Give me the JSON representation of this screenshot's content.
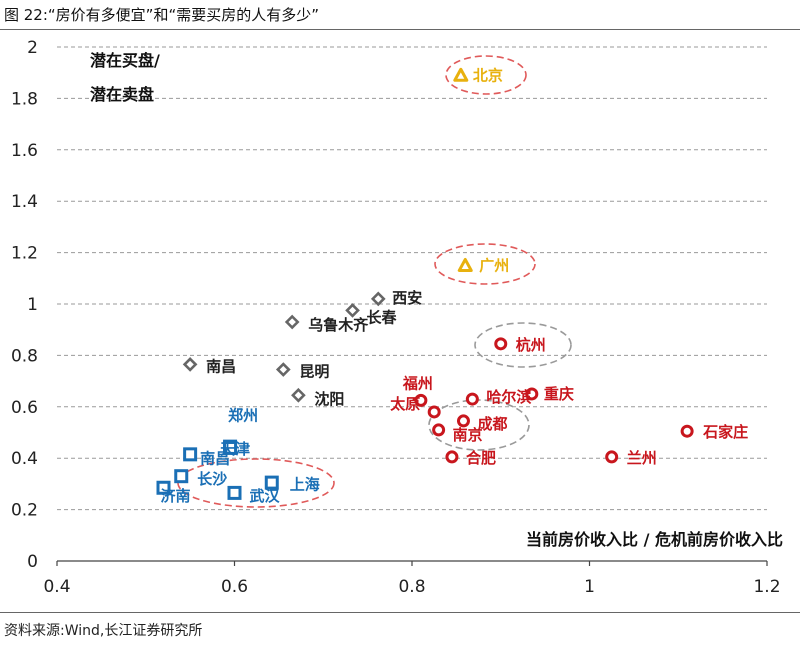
{
  "figure_title": "图 22:“房价有多便宜”和“需要买房的人有多少”",
  "source": "资料来源:Wind,长江证券研究所",
  "colors": {
    "gray": "#666666",
    "red": "#c8161d",
    "blue": "#1a6fb5",
    "gold": "#e8b10e",
    "text_gray": "#222222",
    "ellipse_red": "#e05a5a",
    "ellipse_gray": "#9a9a9a"
  },
  "chart_data": {
    "type": "scatter",
    "xlabel": "当前房价收入比 / 危机前房价收入比",
    "ylabel_lines": [
      "潜在买盘/",
      "潜在卖盘"
    ],
    "xlim": [
      0.4,
      1.2
    ],
    "ylim": [
      0,
      2
    ],
    "x_ticks": [
      "0.4",
      "0.6",
      "0.8",
      "1",
      "1.2"
    ],
    "y_ticks": [
      "0",
      "0.2",
      "0.4",
      "0.6",
      "0.8",
      "1",
      "1.2",
      "1.4",
      "1.6",
      "1.8",
      "2"
    ],
    "grid": "horizontal dashed",
    "series": [
      {
        "marker": "triangle",
        "color": "gold",
        "points": [
          {
            "label": "北京",
            "x": 0.855,
            "y": 1.89
          },
          {
            "label": "广州",
            "x": 0.86,
            "y": 1.15
          }
        ]
      },
      {
        "marker": "diamond",
        "color": "gray",
        "points": [
          {
            "label": "西安",
            "x": 0.762,
            "y": 1.02
          },
          {
            "label": "长春",
            "x": 0.733,
            "y": 0.975
          },
          {
            "label": "乌鲁木齐",
            "x": 0.665,
            "y": 0.93
          },
          {
            "label": "南昌",
            "x": 0.55,
            "y": 0.765
          },
          {
            "label": "昆明",
            "x": 0.655,
            "y": 0.745
          },
          {
            "label": "沈阳",
            "x": 0.672,
            "y": 0.645
          }
        ]
      },
      {
        "marker": "circle",
        "color": "red",
        "points": [
          {
            "label": "杭州",
            "x": 0.9,
            "y": 0.845
          },
          {
            "label": "福州",
            "x": 0.81,
            "y": 0.625
          },
          {
            "label": "哈尔滨",
            "x": 0.868,
            "y": 0.63
          },
          {
            "label": "重庆",
            "x": 0.935,
            "y": 0.65
          },
          {
            "label": "太原",
            "x": 0.825,
            "y": 0.58
          },
          {
            "label": "成都",
            "x": 0.858,
            "y": 0.545
          },
          {
            "label": "南京",
            "x": 0.83,
            "y": 0.51
          },
          {
            "label": "石家庄",
            "x": 1.11,
            "y": 0.505
          },
          {
            "label": "合肥",
            "x": 0.845,
            "y": 0.405
          },
          {
            "label": "兰州",
            "x": 1.025,
            "y": 0.405
          }
        ]
      },
      {
        "marker": "square",
        "color": "blue",
        "points": [
          {
            "label": "郑州",
            "x": 0.595,
            "y": 0.445
          },
          {
            "label": "天津",
            "x": 0.595,
            "y": 0.44
          },
          {
            "label": "南昌",
            "x": 0.55,
            "y": 0.415
          },
          {
            "label": "长沙",
            "x": 0.54,
            "y": 0.33
          },
          {
            "label": "上海",
            "x": 0.642,
            "y": 0.305
          },
          {
            "label": "济南",
            "x": 0.52,
            "y": 0.285
          },
          {
            "label": "武汉",
            "x": 0.6,
            "y": 0.265
          }
        ]
      }
    ]
  }
}
